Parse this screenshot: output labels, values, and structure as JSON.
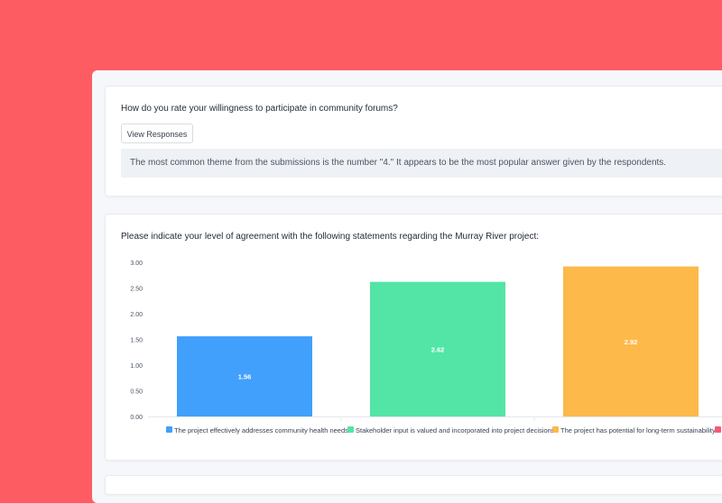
{
  "question_1": {
    "title": "How do you rate your willingness to participate in community forums?",
    "button_label": "View Responses",
    "summary": "The most common theme from the submissions is the number \"4.\" It appears to be the most popular answer given by the respondents."
  },
  "question_2": {
    "title": "Please indicate your level of agreement with the following statements regarding the Murray River project:"
  },
  "chart_data": {
    "type": "bar",
    "categories": [
      "The project effectively addresses community health needs.",
      "Stakeholder input is valued and incorporated into project decisions.",
      "The project has potential for long-term sustainability."
    ],
    "values": [
      1.56,
      2.62,
      2.92
    ],
    "data_labels": [
      "1.56",
      "2.62",
      "2.92"
    ],
    "colors": [
      "#40a0fb",
      "#52e5a5",
      "#fdb94a",
      "#f5597a"
    ],
    "ylim": [
      0,
      3
    ],
    "yticks": [
      "0.00",
      "0.50",
      "1.00",
      "1.50",
      "2.00",
      "2.50",
      "3.00"
    ],
    "grid": false,
    "legend_position": "bottom"
  }
}
